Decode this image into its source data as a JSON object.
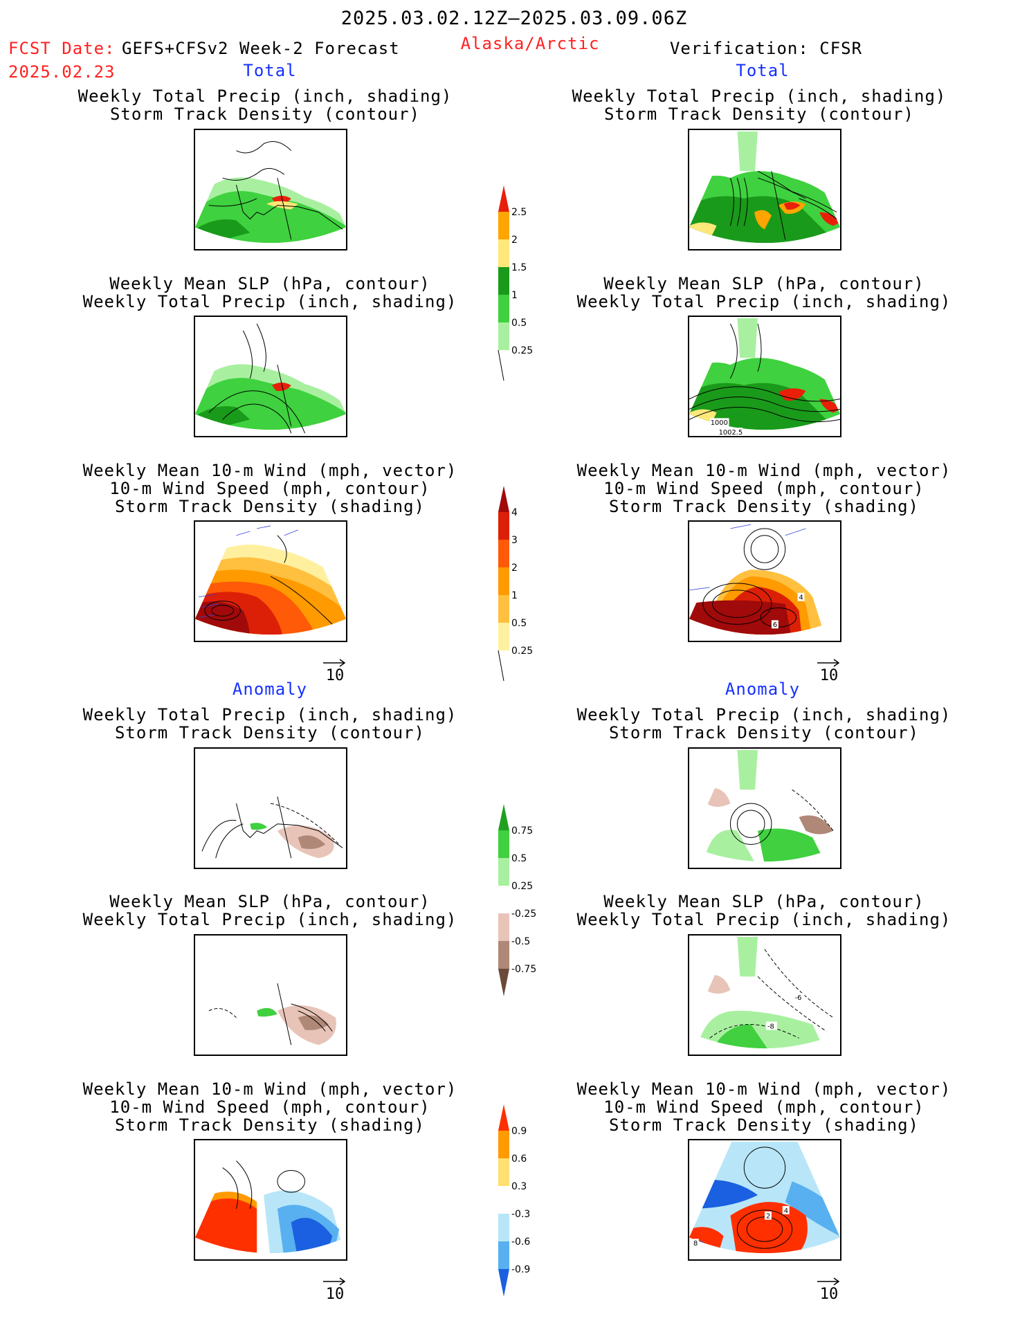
{
  "header": {
    "period": "2025.03.02.12Z–2025.03.09.06Z",
    "fcst_label": "FCST Date:",
    "model": "GEFS+CFSv2 Week-2 Forecast",
    "fcst_date": "2025.02.23",
    "region": "Alaska/Arctic",
    "verification": "Verification: CFSR"
  },
  "sections": {
    "total": "Total",
    "anomaly": "Anomaly"
  },
  "panel_titles": {
    "precip_track": [
      "Weekly Total Precip (inch, shading)",
      "Storm Track Density (contour)"
    ],
    "slp_precip": [
      "Weekly Mean SLP (hPa, contour)",
      "Weekly Total Precip (inch, shading)"
    ],
    "wind_track": [
      "Weekly Mean 10-m Wind (mph, vector)",
      "10-m Wind Speed (mph, contour)",
      "Storm Track Density (shading)"
    ]
  },
  "vector_reference": "10",
  "map_labels": {
    "slp_1000": "1000",
    "slp_1002": "1002.5",
    "wind_4": "4",
    "wind_6": "6",
    "anom_6": "-6",
    "anom_8": "-8",
    "anom_wind_2": "2",
    "anom_wind_4": "4",
    "anom_wind_8": "8"
  },
  "colorbars": {
    "precip_total": {
      "labels": [
        "2.5",
        "2",
        "1.5",
        "1",
        "0.5",
        "0.25"
      ],
      "colors": [
        "#e8200a",
        "#ffa500",
        "#ffe87a",
        "#1a9a1a",
        "#3fd13f",
        "#a8f0a0"
      ]
    },
    "track_total": {
      "labels": [
        "4",
        "3",
        "2",
        "1",
        "0.5",
        "0.25"
      ],
      "colors": [
        "#a00a0a",
        "#dc2008",
        "#ff5a08",
        "#ff9a00",
        "#ffc040",
        "#fff0a0"
      ]
    },
    "precip_anom": {
      "labels": [
        "0.75",
        "0.5",
        "0.25",
        "-0.25",
        "-0.5",
        "-0.75"
      ],
      "pos_colors": [
        "#20a020",
        "#40d040",
        "#a8f0a0"
      ],
      "neg_colors": [
        "#e8c4b8",
        "#b08878",
        "#6a4a3a"
      ]
    },
    "track_anom": {
      "labels": [
        "0.9",
        "0.6",
        "0.3",
        "-0.3",
        "-0.6",
        "-0.9"
      ],
      "pos_colors": [
        "#ff3000",
        "#ff9a00",
        "#ffe070"
      ],
      "neg_colors": [
        "#b8e6f8",
        "#58b0f0",
        "#1a60e0"
      ]
    }
  },
  "chart_data": [
    {
      "type": "heatmap",
      "name": "forecast_total_precip_track",
      "variable": "Weekly Total Precip (inch, shading) / Storm Track Density (contour)"
    },
    {
      "type": "heatmap",
      "name": "forecast_total_slp_precip",
      "variable": "Weekly Mean SLP (hPa, contour) / Weekly Total Precip (inch, shading)"
    },
    {
      "type": "heatmap",
      "name": "forecast_total_wind_track",
      "variable": "Weekly Mean 10-m Wind / 10-m Wind Speed / Storm Track Density (shading)"
    },
    {
      "type": "heatmap",
      "name": "verification_total_precip_track"
    },
    {
      "type": "heatmap",
      "name": "verification_total_slp_precip"
    },
    {
      "type": "heatmap",
      "name": "verification_total_wind_track"
    },
    {
      "type": "heatmap",
      "name": "forecast_anomaly_precip_track"
    },
    {
      "type": "heatmap",
      "name": "forecast_anomaly_slp_precip"
    },
    {
      "type": "heatmap",
      "name": "forecast_anomaly_wind_track"
    },
    {
      "type": "heatmap",
      "name": "verification_anomaly_precip_track"
    },
    {
      "type": "heatmap",
      "name": "verification_anomaly_slp_precip"
    },
    {
      "type": "heatmap",
      "name": "verification_anomaly_wind_track"
    }
  ]
}
